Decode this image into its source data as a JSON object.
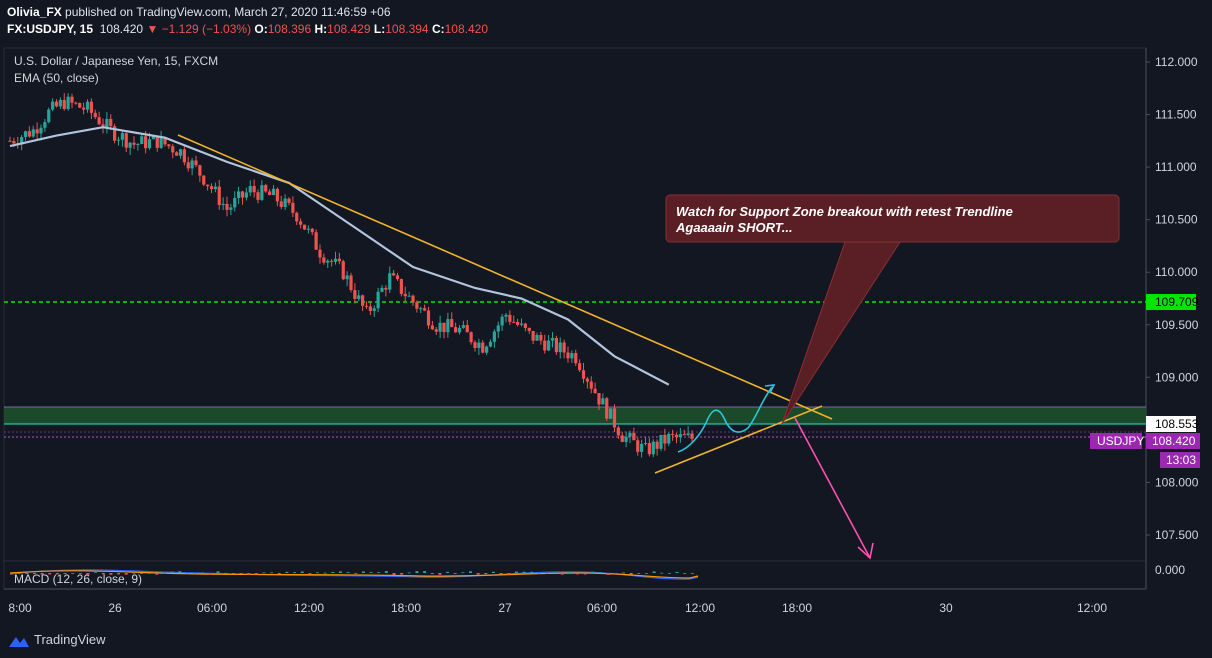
{
  "header": {
    "author": "Olivia_FX",
    "published_text": "published on TradingView.com, March 27, 2020 11:46:59 +06",
    "symbol_line": "FX:USDJPY, 15",
    "last": "108.420",
    "change": "▼ −1.129 (−1.03%)",
    "o_label": "O:",
    "o": "108.396",
    "h_label": "H:",
    "h": "108.429",
    "l_label": "L:",
    "l": "108.394",
    "c_label": "C:",
    "c": "108.420"
  },
  "legend": {
    "instrument": "U.S. Dollar / Japanese Yen, 15, FXCM",
    "ema": "EMA (50, close)",
    "macd": "MACD (12, 26, close, 9)"
  },
  "annotation": {
    "line1": "Watch for Support Zone breakout with retest Trendline",
    "line2": "Agaaaain SHORT..."
  },
  "price_labels": {
    "resistance": "109.709",
    "zone_top": "108.553",
    "symbol": "USDJPY",
    "last": "108.420",
    "countdown": "13:03",
    "macd_zero": "0.000"
  },
  "colors": {
    "background": "#131722",
    "up": "#26a69a",
    "down": "#ef5350",
    "ema": "#b0c4de",
    "trendline": "#f0b429",
    "resistance": "#00e600",
    "zone": "#1b4d2c",
    "callout": "#5a1f24",
    "arrow_down": "#ff4fb0",
    "path_up": "#26c6da",
    "price_tag": "#9c27b0"
  },
  "footer": {
    "brand": "TradingView"
  },
  "chart_data": {
    "type": "candlestick",
    "title": "U.S. Dollar / Japanese Yen, 15, FXCM",
    "y_ticks": [
      "112.000",
      "111.500",
      "111.000",
      "110.500",
      "110.000",
      "109.500",
      "109.000",
      "108.000",
      "107.500"
    ],
    "x_ticks": [
      "8:00",
      "26",
      "06:00",
      "12:00",
      "18:00",
      "27",
      "06:00",
      "12:00",
      "18:00",
      "30",
      "12:00"
    ],
    "ylim": [
      107.35,
      112.1
    ],
    "price_path": [
      {
        "t": 0,
        "p": 111.25
      },
      {
        "t": 3,
        "p": 111.35
      },
      {
        "t": 5,
        "p": 111.52
      },
      {
        "t": 7,
        "p": 111.62
      },
      {
        "t": 10,
        "p": 111.55
      },
      {
        "t": 13,
        "p": 111.35
      },
      {
        "t": 16,
        "p": 111.22
      },
      {
        "t": 19,
        "p": 111.25
      },
      {
        "t": 22,
        "p": 111.15
      },
      {
        "t": 25,
        "p": 110.9
      },
      {
        "t": 28,
        "p": 110.6
      },
      {
        "t": 31,
        "p": 110.78
      },
      {
        "t": 34,
        "p": 110.72
      },
      {
        "t": 37,
        "p": 110.55
      },
      {
        "t": 40,
        "p": 110.2
      },
      {
        "t": 43,
        "p": 110.0
      },
      {
        "t": 46,
        "p": 109.6
      },
      {
        "t": 49,
        "p": 109.95
      },
      {
        "t": 52,
        "p": 109.72
      },
      {
        "t": 55,
        "p": 109.5
      },
      {
        "t": 58,
        "p": 109.45
      },
      {
        "t": 61,
        "p": 109.3
      },
      {
        "t": 64,
        "p": 109.6
      },
      {
        "t": 67,
        "p": 109.4
      },
      {
        "t": 70,
        "p": 109.3
      },
      {
        "t": 73,
        "p": 109.2
      },
      {
        "t": 76,
        "p": 108.8
      },
      {
        "t": 79,
        "p": 108.45
      },
      {
        "t": 82,
        "p": 108.3
      },
      {
        "t": 85,
        "p": 108.42
      },
      {
        "t": 88,
        "p": 108.42
      }
    ],
    "ema_path": [
      {
        "t": 0,
        "p": 111.2
      },
      {
        "t": 6,
        "p": 111.3
      },
      {
        "t": 12,
        "p": 111.38
      },
      {
        "t": 20,
        "p": 111.28
      },
      {
        "t": 28,
        "p": 111.05
      },
      {
        "t": 36,
        "p": 110.85
      },
      {
        "t": 44,
        "p": 110.45
      },
      {
        "t": 52,
        "p": 110.05
      },
      {
        "t": 60,
        "p": 109.85
      },
      {
        "t": 66,
        "p": 109.75
      },
      {
        "t": 72,
        "p": 109.55
      },
      {
        "t": 78,
        "p": 109.2
      },
      {
        "t": 85,
        "p": 108.93
      }
    ],
    "trendline_down": [
      {
        "t": 22,
        "p": 111.3
      },
      {
        "t": 102,
        "p": 108.6
      }
    ],
    "trendline_up": [
      {
        "t": 80,
        "p": 108.1
      },
      {
        "t": 100,
        "p": 108.75
      }
    ],
    "resistance_level": 109.709,
    "support_zone": [
      108.553,
      108.75
    ],
    "macd_zero": 0.0
  }
}
